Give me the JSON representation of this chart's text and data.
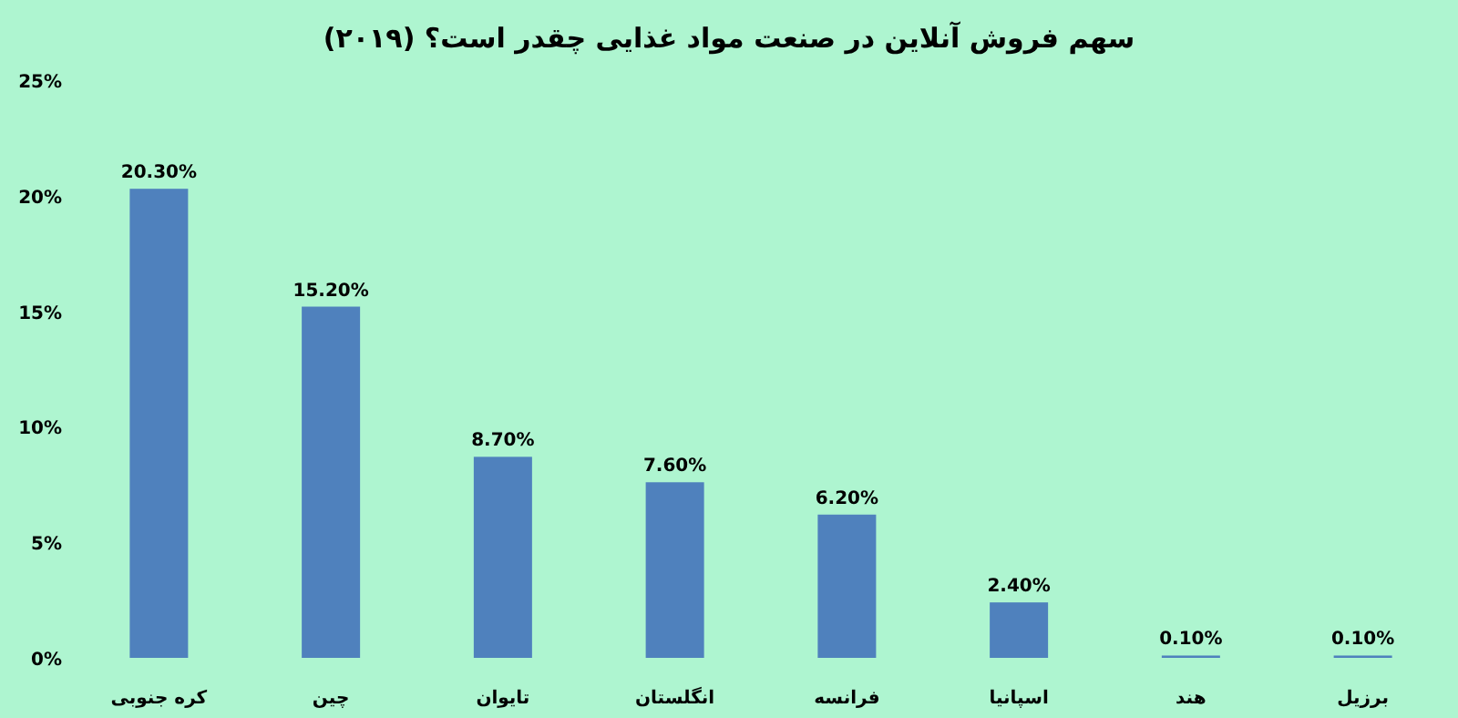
{
  "chart_data": {
    "type": "bar",
    "title": "سهم فروش آنلاین در صنعت مواد غذایی چقدر است؟ (۲۰۱۹)",
    "categories": [
      "کره جنوبی",
      "چین",
      "تایوان",
      "انگلستان",
      "فرانسه",
      "اسپانیا",
      "هند",
      "برزیل"
    ],
    "values": [
      20.3,
      15.2,
      8.7,
      7.6,
      6.2,
      2.4,
      0.1,
      0.1
    ],
    "value_labels": [
      "20.30%",
      "15.20%",
      "8.70%",
      "7.60%",
      "6.20%",
      "2.40%",
      "0.10%",
      "0.10%"
    ],
    "color": "#4f81bd",
    "ylim": [
      0,
      25
    ],
    "yticks": [
      {
        "value": 0,
        "label": "0%"
      },
      {
        "value": 5,
        "label": "5%"
      },
      {
        "value": 10,
        "label": "10%"
      },
      {
        "value": 15,
        "label": "15%"
      },
      {
        "value": 20,
        "label": "20%"
      },
      {
        "value": 25,
        "label": "25%"
      }
    ],
    "grid": false
  }
}
